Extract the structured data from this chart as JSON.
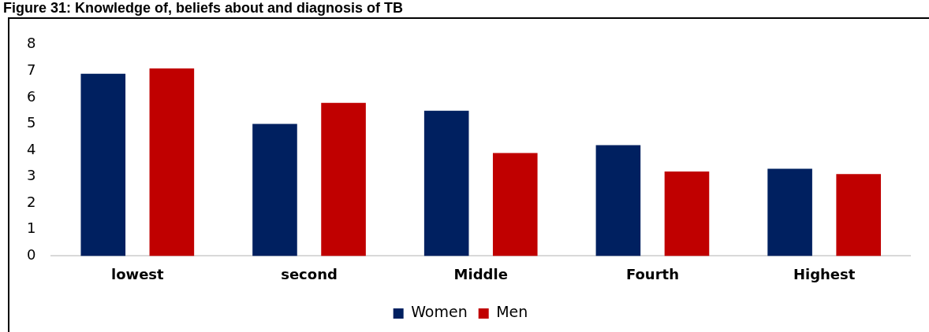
{
  "chart_data": {
    "type": "bar",
    "title": "Figure 31: Knowledge of, beliefs about and diagnosis of TB",
    "categories": [
      "lowest",
      "second",
      "Middle",
      "Fourth",
      "Highest"
    ],
    "series": [
      {
        "name": "Women",
        "color": "#002060",
        "values": [
          6.9,
          5.0,
          5.5,
          4.2,
          3.3
        ]
      },
      {
        "name": "Men",
        "color": "#c00000",
        "values": [
          7.1,
          5.8,
          3.9,
          3.2,
          3.1
        ]
      }
    ],
    "ylim": [
      0,
      8
    ],
    "yticks": [
      0,
      1,
      2,
      3,
      4,
      5,
      6,
      7,
      8
    ],
    "grid": false,
    "legend": "bottom"
  }
}
